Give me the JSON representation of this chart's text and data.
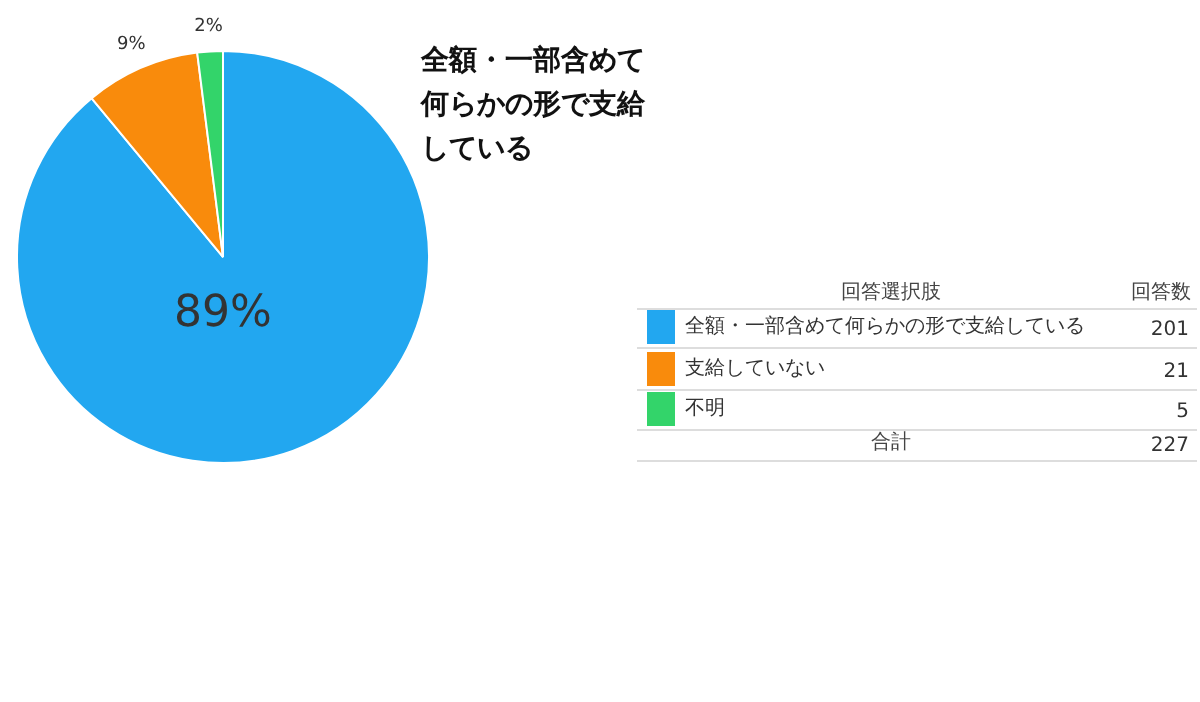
{
  "chart_data": {
    "type": "pie",
    "title": "全額・一部含めて何らかの形で支給している",
    "categories": [
      "全額・一部含めて何らかの形で支給している",
      "支給していない",
      "不明"
    ],
    "values": [
      89,
      9,
      2
    ],
    "value_labels": [
      "89%",
      "9%",
      "2%"
    ],
    "colors": [
      "#22a7f0",
      "#f98b0c",
      "#33d46a"
    ],
    "legend_title": "回答選択肢",
    "annotations": [
      "回答数",
      "201",
      "21",
      "5",
      "合計",
      "227"
    ],
    "data_labels": true,
    "legend": "right"
  }
}
